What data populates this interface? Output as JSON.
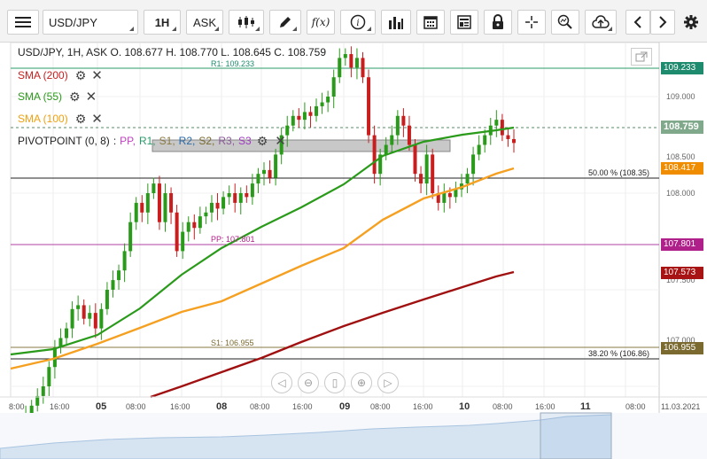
{
  "toolbar": {
    "symbol": "USD/JPY",
    "interval": "1H",
    "price_type": "ASK",
    "fx_label": "f(x)"
  },
  "ohlc": {
    "text": "USD/JPY, 1H, ASK   O. 108.677  H. 108.770  L. 108.645  C. 108.759"
  },
  "indicators": [
    {
      "label": "SMA (200)",
      "color": "#c81e1e"
    },
    {
      "label": "SMA (55)",
      "color": "#2a9a1a"
    },
    {
      "label": "SMA (100)",
      "color": "#f0a010"
    }
  ],
  "pivot": {
    "label": "PIVOTPOINT (0, 8)",
    "separator": ":",
    "items": [
      {
        "label": "PP,",
        "color": "#c040c0"
      },
      {
        "label": "R1,",
        "color": "#2a9a6a"
      },
      {
        "label": "S1,",
        "color": "#8a7a40"
      },
      {
        "label": "R2,",
        "color": "#2a6aaa"
      },
      {
        "label": "S2,",
        "color": "#7a6a30"
      },
      {
        "label": "R3,",
        "color": "#8a5a9a"
      },
      {
        "label": "S3",
        "color": "#a03ac0"
      }
    ]
  },
  "price_labels": {
    "r1": {
      "text": "109.233",
      "color": "#1e8a6e"
    },
    "current": {
      "text": "108.759",
      "color": "#7fa98a"
    },
    "sma100": {
      "text": "108.417",
      "color": "#f08c00"
    },
    "pp": {
      "text": "107.801",
      "color": "#b0208a"
    },
    "sma200": {
      "text": "107.573",
      "color": "#a81414"
    },
    "s1": {
      "text": "106.955",
      "color": "#7a6a30"
    }
  },
  "axis_ticks": [
    "109.000",
    "108.500",
    "108.000",
    "107.500",
    "107.000"
  ],
  "line_labels": {
    "r1": "R1: 109.233",
    "pp": "PP: 107.801",
    "s1": "S1: 106.955",
    "fib50": "50.00 % (108.35)",
    "fib38": "38.20 % (106.86)"
  },
  "time_ticks": [
    {
      "label": "8:00",
      "bold": false
    },
    {
      "label": "16:00",
      "bold": false
    },
    {
      "label": "05",
      "bold": true
    },
    {
      "label": "08:00",
      "bold": false
    },
    {
      "label": "16:00",
      "bold": false
    },
    {
      "label": "08",
      "bold": true
    },
    {
      "label": "08:00",
      "bold": false
    },
    {
      "label": "16:00",
      "bold": false
    },
    {
      "label": "09",
      "bold": true
    },
    {
      "label": "08:00",
      "bold": false
    },
    {
      "label": "16:00",
      "bold": false
    },
    {
      "label": "10",
      "bold": true
    },
    {
      "label": "08:00",
      "bold": false
    },
    {
      "label": "16:00",
      "bold": false
    },
    {
      "label": "11",
      "bold": true
    },
    {
      "label": "08:00",
      "bold": false
    },
    {
      "label": "11.03.2021",
      "bold": false
    }
  ],
  "colors": {
    "up": "#2a9a1a",
    "down": "#c81e1e",
    "sma55": "#2a9a1a",
    "sma100": "#f5a020",
    "sma200": "#a01010"
  }
}
